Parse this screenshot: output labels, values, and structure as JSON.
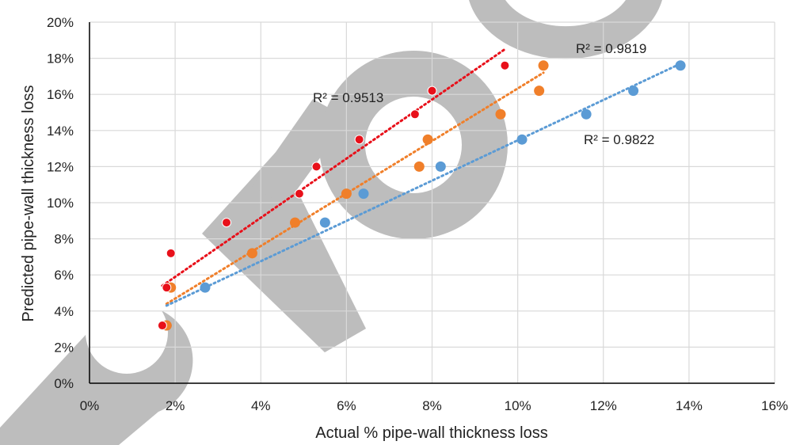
{
  "chart_data": {
    "type": "scatter",
    "xlabel": "Actual % pipe-wall thickness loss",
    "ylabel": "Predicted pipe-wall thickness loss",
    "xlim": [
      0,
      16
    ],
    "ylim": [
      0,
      20
    ],
    "x_ticks": [
      "0%",
      "2%",
      "4%",
      "6%",
      "8%",
      "10%",
      "12%",
      "14%",
      "16%"
    ],
    "y_ticks": [
      "0%",
      "2%",
      "4%",
      "6%",
      "8%",
      "10%",
      "12%",
      "14%",
      "16%",
      "18%",
      "20%"
    ],
    "grid": true,
    "trendline_style": "dotted linear",
    "watermark_color": "#bdbdbd",
    "series": [
      {
        "color": "#e8101a",
        "x": [
          1.7,
          1.8,
          1.9,
          3.2,
          4.9,
          5.3,
          6.3,
          7.6,
          8.0,
          9.7
        ],
        "y": [
          3.2,
          5.3,
          7.2,
          8.9,
          10.5,
          12.0,
          13.5,
          14.9,
          16.2,
          17.6
        ],
        "trend": {
          "x": [
            1.7,
            9.7
          ],
          "y": [
            5.4,
            18.5
          ]
        },
        "r2_label": "R² = 0.9513"
      },
      {
        "color": "#f07f2a",
        "x": [
          1.8,
          1.9,
          3.8,
          4.8,
          6.0,
          7.7,
          7.9,
          9.6,
          10.5,
          10.6
        ],
        "y": [
          3.2,
          5.3,
          7.2,
          8.9,
          10.5,
          12.0,
          13.5,
          14.9,
          16.2,
          17.6
        ],
        "trend": {
          "x": [
            1.8,
            10.6
          ],
          "y": [
            4.4,
            17.2
          ]
        },
        "r2_label": "R² = 0.9819"
      },
      {
        "color": "#5b9bd5",
        "x": [
          1.8,
          2.7,
          5.5,
          6.4,
          8.2,
          10.1,
          11.6,
          12.7,
          13.8
        ],
        "y": [
          3.2,
          5.3,
          8.9,
          10.5,
          12.0,
          13.5,
          14.9,
          16.2,
          17.6
        ],
        "trend": {
          "x": [
            1.8,
            13.8
          ],
          "y": [
            4.3,
            17.7
          ]
        },
        "r2_label": "R² = 0.9822"
      }
    ]
  }
}
